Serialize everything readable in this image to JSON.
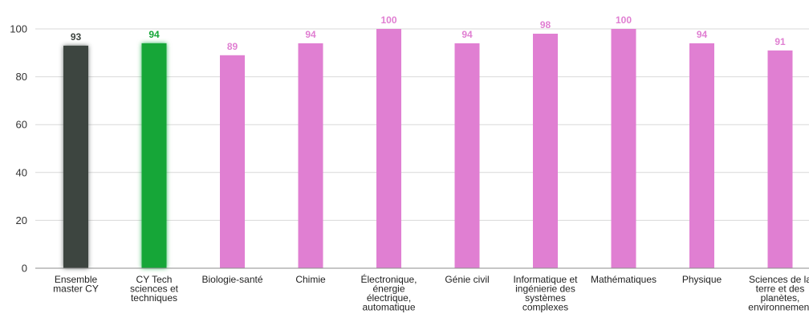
{
  "chart_data": {
    "type": "bar",
    "title": "",
    "xlabel": "",
    "ylabel": "",
    "ylim": [
      0,
      100
    ],
    "yticks": [
      0,
      20,
      40,
      60,
      80,
      100
    ],
    "grid": true,
    "legend": "none",
    "categories": [
      [
        "Ensemble",
        "master CY"
      ],
      [
        "CY Tech",
        "sciences et",
        "techniques"
      ],
      [
        "Biologie-santé"
      ],
      [
        "Chimie"
      ],
      [
        "Électronique,",
        "énergie",
        "électrique,",
        "automatique"
      ],
      [
        "Génie civil"
      ],
      [
        "Informatique et",
        "ingénierie des",
        "systèmes",
        "complexes"
      ],
      [
        "Mathématiques"
      ],
      [
        "Physique"
      ],
      [
        "Sciences de la",
        "terre et des",
        "planètes,",
        "environnement"
      ]
    ],
    "values": [
      93,
      94,
      89,
      94,
      100,
      94,
      98,
      100,
      94,
      91
    ],
    "value_labels": [
      "93",
      "94",
      "89",
      "94",
      "100",
      "94",
      "98",
      "100",
      "94",
      "91"
    ],
    "value_label_bold": [
      true,
      true,
      true,
      true,
      true,
      true,
      true,
      false,
      true,
      true
    ],
    "colors": {
      "ensemble_bar": "#3d4440",
      "cytech_bar": "#14a637",
      "other_bar": "#e07fd2",
      "ensemble_label": "#3d4440",
      "cytech_label": "#14a637",
      "other_label": "#e07fd2",
      "grid": "#d9d9d9",
      "axis": "#8c8c8c"
    },
    "bar_colors": [
      "ensemble_bar",
      "cytech_bar",
      "other_bar",
      "other_bar",
      "other_bar",
      "other_bar",
      "other_bar",
      "other_bar",
      "other_bar",
      "other_bar"
    ],
    "label_colors": [
      "ensemble_label",
      "cytech_label",
      "other_label",
      "other_label",
      "other_label",
      "other_label",
      "other_label",
      "other_label",
      "other_label",
      "other_label"
    ],
    "highlighted": [
      true,
      true,
      false,
      false,
      false,
      false,
      false,
      false,
      false,
      false
    ]
  }
}
